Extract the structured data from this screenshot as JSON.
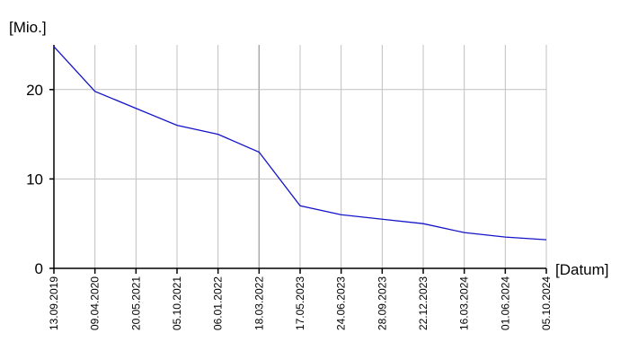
{
  "chart_data": {
    "type": "line",
    "ylabel": "[Mio.]",
    "xlabel": "[Datum]",
    "ylim": [
      0,
      25
    ],
    "yticks": [
      0,
      10,
      20
    ],
    "grid": true,
    "x": [
      "13.09.2019",
      "09.04.2020",
      "20.05.2021",
      "05.10.2021",
      "06.01.2022",
      "18.03.2022",
      "17.05.2023",
      "24.06.2023",
      "28.09.2023",
      "22.12.2023",
      "16.03.2024",
      "01.06.2024",
      "05.10.2024"
    ],
    "series": [
      {
        "color": "#1414c8",
        "values": [
          24.8,
          19.8,
          17.9,
          16.0,
          15.0,
          13.0,
          7.0,
          6.0,
          5.5,
          5.0,
          4.0,
          3.5,
          3.2
        ]
      }
    ]
  }
}
